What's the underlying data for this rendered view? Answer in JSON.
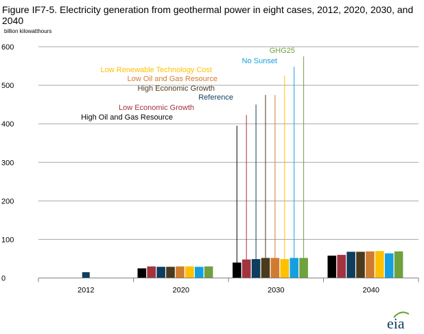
{
  "chart_data": {
    "type": "bar",
    "title": "Figure IF7-5. Electricity generation from geothermal power in eight cases, 2012, 2020, 2030, and 2040",
    "ylabel": "billion kilowatthours",
    "ylim": [
      0,
      600
    ],
    "y_ticks": [
      0,
      100,
      200,
      300,
      400,
      500,
      600
    ],
    "categories": [
      "2012",
      "2020",
      "2030",
      "2040"
    ],
    "grid": true,
    "series": [
      {
        "name": "High Oil and Gas Resource",
        "color": "#000000",
        "values": [
          null,
          25,
          40,
          58
        ]
      },
      {
        "name": "Low Economic Growth",
        "color": "#A33340",
        "values": [
          null,
          30,
          48,
          60
        ]
      },
      {
        "name": "Reference",
        "color": "#0E3D5D",
        "values": [
          15,
          29,
          49,
          68
        ]
      },
      {
        "name": "High Economic Growth",
        "color": "#4B3A1B",
        "values": [
          null,
          29,
          52,
          68
        ]
      },
      {
        "name": "Low Oil and Gas Resource",
        "color": "#D07C30",
        "values": [
          null,
          30,
          52,
          69
        ]
      },
      {
        "name": "Low Renewable Technology  Cost",
        "color": "#FFC000",
        "values": [
          null,
          30,
          49,
          70
        ]
      },
      {
        "name": "No Sunset",
        "color": "#14A0E0",
        "values": [
          null,
          29,
          52,
          64
        ]
      },
      {
        "name": "GHG25",
        "color": "#6FA13E",
        "values": [
          null,
          30,
          52,
          69
        ]
      }
    ],
    "callout_values_2030": [
      395,
      423,
      450,
      475,
      475,
      525,
      548,
      575
    ]
  },
  "logo": {
    "text": "eia"
  }
}
